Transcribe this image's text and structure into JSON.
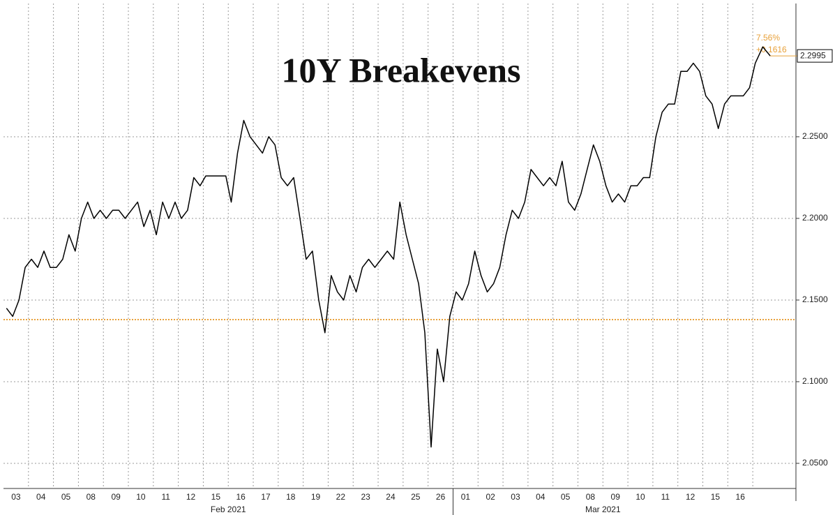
{
  "chart_data": {
    "type": "line",
    "title": "10Y Breakevens",
    "color": "#000000",
    "x": [
      0.12,
      0.37,
      0.62,
      0.87,
      1.12,
      1.37,
      1.62,
      1.87,
      2.12,
      2.37,
      2.62,
      2.87,
      3.12,
      3.37,
      3.62,
      3.87,
      4.12,
      4.37,
      4.62,
      4.87,
      5.12,
      5.37,
      5.62,
      5.87,
      6.12,
      6.37,
      6.62,
      6.87,
      7.12,
      7.37,
      7.62,
      7.87,
      8.1,
      8.9,
      9.12,
      9.37,
      9.62,
      9.87,
      10.12,
      10.37,
      10.62,
      10.87,
      11.12,
      11.37,
      11.62,
      11.87,
      12.12,
      12.37,
      12.62,
      12.87,
      13.12,
      13.37,
      13.62,
      13.87,
      14.12,
      14.37,
      14.62,
      14.87,
      15.12,
      15.37,
      15.62,
      15.87,
      16.12,
      16.37,
      16.62,
      16.87,
      17.12,
      17.37,
      17.62,
      17.87,
      18.12,
      18.37,
      18.62,
      18.87,
      19.12,
      19.37,
      19.62,
      19.87,
      20.12,
      20.37,
      20.62,
      20.87,
      21.12,
      21.37,
      21.62,
      21.87,
      22.12,
      22.37,
      22.62,
      22.87,
      23.12,
      23.37,
      23.62,
      23.87,
      24.12,
      24.37,
      24.62,
      24.87,
      25.12,
      25.37,
      25.62,
      25.87,
      26.12,
      26.37,
      26.62,
      26.87,
      27.12,
      27.37,
      27.62,
      27.87,
      28.12,
      28.37,
      28.62,
      28.87,
      29.12,
      29.37,
      29.62,
      29.87,
      30.1,
      30.4,
      30.7
    ],
    "values": [
      2.145,
      2.14,
      2.15,
      2.17,
      2.175,
      2.17,
      2.18,
      2.17,
      2.17,
      2.175,
      2.19,
      2.18,
      2.2,
      2.21,
      2.2,
      2.205,
      2.2,
      2.205,
      2.205,
      2.2,
      2.205,
      2.21,
      2.195,
      2.205,
      2.19,
      2.21,
      2.2,
      2.21,
      2.2,
      2.205,
      2.225,
      2.22,
      2.226,
      2.226,
      2.21,
      2.24,
      2.26,
      2.25,
      2.245,
      2.24,
      2.25,
      2.245,
      2.225,
      2.22,
      2.225,
      2.2,
      2.175,
      2.18,
      2.15,
      2.13,
      2.165,
      2.155,
      2.15,
      2.165,
      2.155,
      2.17,
      2.175,
      2.17,
      2.175,
      2.18,
      2.175,
      2.21,
      2.19,
      2.175,
      2.16,
      2.13,
      2.06,
      2.12,
      2.1,
      2.14,
      2.155,
      2.15,
      2.16,
      2.18,
      2.165,
      2.155,
      2.16,
      2.17,
      2.19,
      2.205,
      2.2,
      2.21,
      2.23,
      2.225,
      2.22,
      2.225,
      2.22,
      2.235,
      2.21,
      2.205,
      2.215,
      2.23,
      2.245,
      2.235,
      2.22,
      2.21,
      2.215,
      2.21,
      2.22,
      2.22,
      2.225,
      2.225,
      2.25,
      2.265,
      2.27,
      2.27,
      2.29,
      2.29,
      2.295,
      2.29,
      2.275,
      2.27,
      2.255,
      2.27,
      2.275,
      2.275,
      2.275,
      2.28,
      2.295,
      2.305,
      2.2995
    ],
    "xlim": [
      0,
      31.7
    ],
    "xticks": [
      {
        "value": 0.5,
        "label": "03"
      },
      {
        "value": 1.5,
        "label": "04"
      },
      {
        "value": 2.5,
        "label": "05"
      },
      {
        "value": 3.5,
        "label": "08"
      },
      {
        "value": 4.5,
        "label": "09"
      },
      {
        "value": 5.5,
        "label": "10"
      },
      {
        "value": 6.5,
        "label": "11"
      },
      {
        "value": 7.5,
        "label": "12"
      },
      {
        "value": 8.5,
        "label": "15"
      },
      {
        "value": 9.5,
        "label": "16"
      },
      {
        "value": 10.5,
        "label": "17"
      },
      {
        "value": 11.5,
        "label": "18"
      },
      {
        "value": 12.5,
        "label": "19"
      },
      {
        "value": 13.5,
        "label": "22"
      },
      {
        "value": 14.5,
        "label": "23"
      },
      {
        "value": 15.5,
        "label": "24"
      },
      {
        "value": 16.5,
        "label": "25"
      },
      {
        "value": 17.5,
        "label": "26"
      },
      {
        "value": 18.5,
        "label": "01"
      },
      {
        "value": 19.5,
        "label": "02"
      },
      {
        "value": 20.5,
        "label": "03"
      },
      {
        "value": 21.5,
        "label": "04"
      },
      {
        "value": 22.5,
        "label": "05"
      },
      {
        "value": 23.5,
        "label": "08"
      },
      {
        "value": 24.5,
        "label": "09"
      },
      {
        "value": 25.5,
        "label": "10"
      },
      {
        "value": 26.5,
        "label": "11"
      },
      {
        "value": 27.5,
        "label": "12"
      },
      {
        "value": 28.5,
        "label": "15"
      },
      {
        "value": 29.5,
        "label": "16"
      }
    ],
    "x_groups": [
      {
        "label": "Feb 2021",
        "start": 0,
        "end": 18
      },
      {
        "label": "Mar 2021",
        "start": 18,
        "end": 30
      }
    ],
    "ylim": [
      2.0346,
      2.3316
    ],
    "yticks": [
      {
        "value": 2.05,
        "label": "2.0500"
      },
      {
        "value": 2.1,
        "label": "2.1000"
      },
      {
        "value": 2.15,
        "label": "2.1500"
      },
      {
        "value": 2.2,
        "label": "2.2000"
      },
      {
        "value": 2.25,
        "label": "2.2500"
      }
    ],
    "grid": true,
    "reference_line": {
      "value": 2.138,
      "color": "#e8a13a"
    },
    "last_value": 2.2995,
    "change_pct": "7.56%",
    "change": "+0.1616"
  }
}
